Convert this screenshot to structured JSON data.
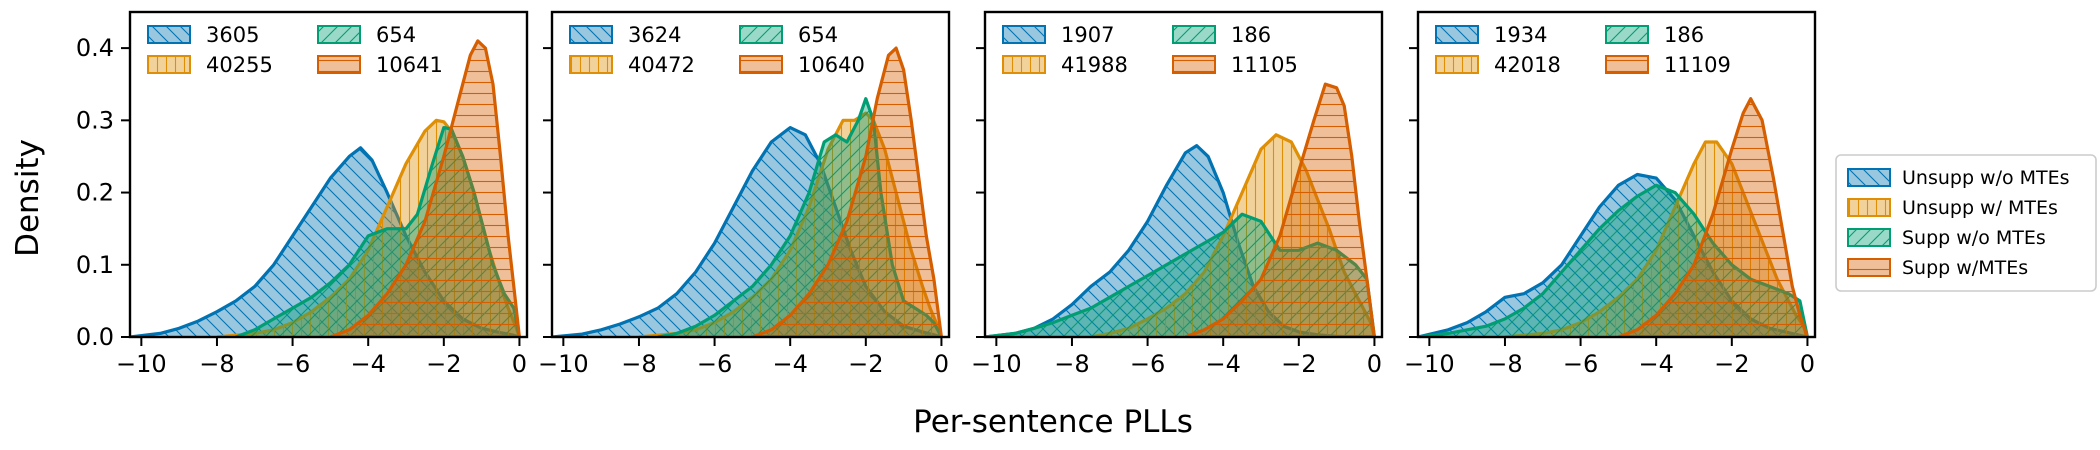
{
  "colors": {
    "blue": "#0173b2",
    "orange": "#de8f05",
    "green": "#029e73",
    "red": "#d55e00"
  },
  "hatches": [
    "diagonal-backslash",
    "vertical",
    "diagonal-forward",
    "horizontal"
  ],
  "chart_data": {
    "type": "area",
    "xlabel": "Per-sentence PLLs",
    "ylabel": "Density",
    "xlim": [
      -10.3,
      0.2
    ],
    "ylim": [
      0,
      0.45
    ],
    "x_ticks": [
      -10,
      -8,
      -6,
      -4,
      -2,
      0
    ],
    "x_tick_labels": [
      "−10",
      "−8",
      "−6",
      "−4",
      "−2",
      "0"
    ],
    "y_ticks": [
      0.0,
      0.1,
      0.2,
      0.3,
      0.4
    ],
    "y_tick_labels": [
      "0.0",
      "0.1",
      "0.2",
      "0.3",
      "0.4"
    ],
    "shared_legend": {
      "placement": "right",
      "entries": [
        "Unsupp w/o MTEs",
        "Unsupp w/ MTEs",
        "Supp w/o MTEs",
        "Supp w/MTEs"
      ]
    },
    "panels": [
      {
        "counts": [
          "3605",
          "40255",
          "654",
          "10641"
        ],
        "series": [
          {
            "x": [
              -10.3,
              -9.5,
              -9.0,
              -8.5,
              -8.0,
              -7.5,
              -7.0,
              -6.5,
              -6.0,
              -5.5,
              -5.0,
              -4.5,
              -4.2,
              -3.9,
              -3.5,
              -3.0,
              -2.5,
              -2.0,
              -1.5,
              -1.0,
              -0.5,
              -0.2,
              0.0
            ],
            "y": [
              0.0,
              0.005,
              0.012,
              0.022,
              0.035,
              0.05,
              0.07,
              0.1,
              0.14,
              0.18,
              0.22,
              0.25,
              0.262,
              0.245,
              0.2,
              0.14,
              0.09,
              0.05,
              0.025,
              0.012,
              0.006,
              0.003,
              0.0
            ]
          },
          {
            "x": [
              -8.0,
              -7.0,
              -6.5,
              -6.0,
              -5.5,
              -5.0,
              -4.5,
              -4.0,
              -3.5,
              -3.0,
              -2.5,
              -2.2,
              -2.0,
              -1.8,
              -1.5,
              -1.2,
              -1.0,
              -0.8,
              -0.5,
              -0.3,
              -0.1,
              0.0
            ],
            "y": [
              0.0,
              0.005,
              0.01,
              0.02,
              0.035,
              0.055,
              0.08,
              0.12,
              0.18,
              0.24,
              0.285,
              0.3,
              0.298,
              0.285,
              0.25,
              0.2,
              0.16,
              0.12,
              0.07,
              0.04,
              0.015,
              0.0
            ]
          },
          {
            "x": [
              -7.5,
              -7.0,
              -6.5,
              -6.0,
              -5.5,
              -5.0,
              -4.5,
              -4.0,
              -3.5,
              -3.0,
              -2.7,
              -2.3,
              -2.0,
              -1.8,
              -1.5,
              -1.2,
              -1.0,
              -0.7,
              -0.4,
              -0.15,
              0.0
            ],
            "y": [
              0.0,
              0.01,
              0.025,
              0.04,
              0.055,
              0.075,
              0.1,
              0.14,
              0.15,
              0.15,
              0.17,
              0.24,
              0.29,
              0.288,
              0.25,
              0.2,
              0.16,
              0.1,
              0.06,
              0.04,
              0.0
            ]
          },
          {
            "x": [
              -5.0,
              -4.5,
              -4.0,
              -3.5,
              -3.0,
              -2.5,
              -2.0,
              -1.6,
              -1.3,
              -1.1,
              -0.9,
              -0.7,
              -0.5,
              -0.3,
              -0.15,
              0.0
            ],
            "y": [
              0.0,
              0.01,
              0.03,
              0.06,
              0.1,
              0.16,
              0.25,
              0.33,
              0.39,
              0.41,
              0.4,
              0.35,
              0.25,
              0.14,
              0.07,
              0.0
            ]
          }
        ]
      },
      {
        "counts": [
          "3624",
          "40472",
          "654",
          "10640"
        ],
        "series": [
          {
            "x": [
              -10.3,
              -9.5,
              -9.0,
              -8.5,
              -8.0,
              -7.5,
              -7.0,
              -6.5,
              -6.0,
              -5.5,
              -5.0,
              -4.5,
              -4.0,
              -3.6,
              -3.2,
              -2.8,
              -2.4,
              -2.0,
              -1.5,
              -1.0,
              -0.5,
              -0.2,
              0.0
            ],
            "y": [
              0.0,
              0.004,
              0.01,
              0.018,
              0.028,
              0.04,
              0.06,
              0.09,
              0.13,
              0.18,
              0.23,
              0.27,
              0.29,
              0.28,
              0.24,
              0.18,
              0.12,
              0.07,
              0.035,
              0.015,
              0.007,
              0.003,
              0.0
            ]
          },
          {
            "x": [
              -8.0,
              -7.0,
              -6.5,
              -6.0,
              -5.5,
              -5.0,
              -4.5,
              -4.0,
              -3.5,
              -3.0,
              -2.6,
              -2.3,
              -2.0,
              -1.8,
              -1.5,
              -1.2,
              -1.0,
              -0.8,
              -0.5,
              -0.3,
              -0.1,
              0.0
            ],
            "y": [
              0.0,
              0.005,
              0.01,
              0.02,
              0.035,
              0.055,
              0.08,
              0.12,
              0.18,
              0.26,
              0.3,
              0.3,
              0.31,
              0.3,
              0.26,
              0.2,
              0.16,
              0.12,
              0.07,
              0.04,
              0.015,
              0.0
            ]
          },
          {
            "x": [
              -7.5,
              -7.0,
              -6.5,
              -6.0,
              -5.5,
              -5.0,
              -4.5,
              -4.0,
              -3.5,
              -3.1,
              -2.8,
              -2.5,
              -2.2,
              -2.0,
              -1.8,
              -1.6,
              -1.3,
              -1.0,
              -0.7,
              -0.4,
              -0.2,
              0.0
            ],
            "y": [
              0.0,
              0.005,
              0.015,
              0.03,
              0.05,
              0.07,
              0.1,
              0.14,
              0.2,
              0.27,
              0.28,
              0.27,
              0.3,
              0.33,
              0.3,
              0.2,
              0.1,
              0.05,
              0.04,
              0.03,
              0.02,
              0.0
            ]
          },
          {
            "x": [
              -5.0,
              -4.5,
              -4.0,
              -3.5,
              -3.0,
              -2.5,
              -2.0,
              -1.7,
              -1.4,
              -1.2,
              -1.0,
              -0.8,
              -0.6,
              -0.4,
              -0.2,
              0.0
            ],
            "y": [
              0.0,
              0.01,
              0.03,
              0.06,
              0.1,
              0.16,
              0.25,
              0.33,
              0.39,
              0.4,
              0.37,
              0.3,
              0.22,
              0.14,
              0.08,
              0.0
            ]
          }
        ]
      },
      {
        "counts": [
          "1907",
          "41988",
          "186",
          "11105"
        ],
        "series": [
          {
            "x": [
              -10.3,
              -9.5,
              -9.0,
              -8.5,
              -8.0,
              -7.5,
              -7.0,
              -6.5,
              -6.0,
              -5.5,
              -5.0,
              -4.7,
              -4.4,
              -4.0,
              -3.6,
              -3.2,
              -2.8,
              -2.4,
              -2.0,
              -1.5,
              -1.0,
              -0.5,
              0.0
            ],
            "y": [
              0.0,
              0.005,
              0.012,
              0.025,
              0.045,
              0.07,
              0.09,
              0.12,
              0.16,
              0.21,
              0.255,
              0.265,
              0.25,
              0.2,
              0.13,
              0.07,
              0.035,
              0.015,
              0.007,
              0.003,
              0.001,
              0.0,
              0.0
            ]
          },
          {
            "x": [
              -7.5,
              -7.0,
              -6.5,
              -6.0,
              -5.5,
              -5.0,
              -4.5,
              -4.0,
              -3.5,
              -3.0,
              -2.6,
              -2.2,
              -1.8,
              -1.5,
              -1.2,
              -1.0,
              -0.8,
              -0.5,
              -0.3,
              -0.1,
              0.0
            ],
            "y": [
              0.0,
              0.005,
              0.012,
              0.025,
              0.04,
              0.06,
              0.09,
              0.14,
              0.2,
              0.26,
              0.28,
              0.27,
              0.23,
              0.19,
              0.15,
              0.12,
              0.09,
              0.06,
              0.04,
              0.02,
              0.0
            ]
          },
          {
            "x": [
              -10.3,
              -9.5,
              -9.0,
              -8.5,
              -8.0,
              -7.5,
              -7.0,
              -6.5,
              -6.0,
              -5.5,
              -5.0,
              -4.5,
              -4.0,
              -3.5,
              -3.0,
              -2.5,
              -2.0,
              -1.5,
              -1.0,
              -0.5,
              -0.2,
              0.0
            ],
            "y": [
              0.0,
              0.005,
              0.012,
              0.02,
              0.03,
              0.04,
              0.055,
              0.07,
              0.085,
              0.1,
              0.115,
              0.13,
              0.145,
              0.17,
              0.16,
              0.12,
              0.12,
              0.13,
              0.12,
              0.1,
              0.08,
              0.0
            ]
          },
          {
            "x": [
              -5.0,
              -4.5,
              -4.0,
              -3.5,
              -3.0,
              -2.5,
              -2.0,
              -1.6,
              -1.3,
              -1.0,
              -0.8,
              -0.6,
              -0.4,
              -0.2,
              0.0
            ],
            "y": [
              0.0,
              0.01,
              0.025,
              0.05,
              0.08,
              0.14,
              0.23,
              0.3,
              0.35,
              0.345,
              0.32,
              0.25,
              0.16,
              0.08,
              0.0
            ]
          }
        ]
      },
      {
        "counts": [
          "1934",
          "42018",
          "186",
          "11109"
        ],
        "series": [
          {
            "x": [
              -10.3,
              -9.5,
              -9.0,
              -8.5,
              -8.0,
              -7.5,
              -7.0,
              -6.5,
              -6.0,
              -5.5,
              -5.0,
              -4.5,
              -4.0,
              -3.5,
              -3.0,
              -2.5,
              -2.0,
              -1.5,
              -1.0,
              -0.5,
              0.0
            ],
            "y": [
              0.0,
              0.01,
              0.02,
              0.035,
              0.055,
              0.06,
              0.075,
              0.1,
              0.14,
              0.18,
              0.21,
              0.225,
              0.22,
              0.19,
              0.14,
              0.09,
              0.05,
              0.025,
              0.012,
              0.006,
              0.0
            ]
          },
          {
            "x": [
              -8.0,
              -7.0,
              -6.5,
              -6.0,
              -5.5,
              -5.0,
              -4.5,
              -4.0,
              -3.5,
              -3.0,
              -2.7,
              -2.4,
              -2.0,
              -1.7,
              -1.4,
              -1.1,
              -0.8,
              -0.5,
              -0.3,
              -0.1,
              0.0
            ],
            "y": [
              0.0,
              0.005,
              0.01,
              0.02,
              0.035,
              0.055,
              0.08,
              0.12,
              0.18,
              0.24,
              0.27,
              0.27,
              0.24,
              0.2,
              0.16,
              0.12,
              0.08,
              0.05,
              0.03,
              0.015,
              0.0
            ]
          },
          {
            "x": [
              -10.3,
              -9.5,
              -9.0,
              -8.5,
              -8.0,
              -7.5,
              -7.0,
              -6.5,
              -6.0,
              -5.5,
              -5.0,
              -4.5,
              -4.0,
              -3.5,
              -3.0,
              -2.5,
              -2.0,
              -1.5,
              -1.0,
              -0.5,
              -0.2,
              0.0
            ],
            "y": [
              0.0,
              0.005,
              0.01,
              0.015,
              0.025,
              0.04,
              0.06,
              0.09,
              0.12,
              0.15,
              0.175,
              0.195,
              0.21,
              0.2,
              0.17,
              0.13,
              0.1,
              0.08,
              0.07,
              0.06,
              0.05,
              0.0
            ]
          },
          {
            "x": [
              -5.0,
              -4.5,
              -4.0,
              -3.5,
              -3.0,
              -2.5,
              -2.0,
              -1.7,
              -1.5,
              -1.2,
              -0.9,
              -0.6,
              -0.4,
              -0.2,
              0.0
            ],
            "y": [
              0.0,
              0.01,
              0.03,
              0.06,
              0.1,
              0.17,
              0.26,
              0.31,
              0.33,
              0.3,
              0.22,
              0.13,
              0.07,
              0.03,
              0.0
            ]
          }
        ]
      }
    ]
  }
}
